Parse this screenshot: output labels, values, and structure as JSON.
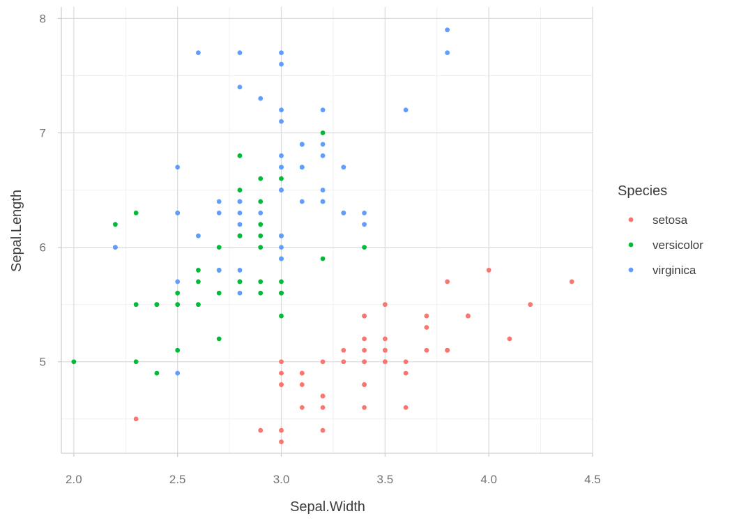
{
  "chart_data": {
    "type": "scatter",
    "xlabel": "Sepal.Width",
    "ylabel": "Sepal.Length",
    "xlim": [
      1.94,
      4.5
    ],
    "ylim": [
      4.2,
      8.1
    ],
    "x_ticks": [
      2.0,
      2.5,
      3.0,
      3.5,
      4.0,
      4.5
    ],
    "x_tick_labels": [
      "2.0",
      "2.5",
      "3.0",
      "3.5",
      "4.0",
      "4.5"
    ],
    "y_ticks": [
      5,
      6,
      7,
      8
    ],
    "y_tick_labels": [
      "5",
      "6",
      "7",
      "8"
    ],
    "grid": true,
    "legend": {
      "title": "Species",
      "position": "right"
    },
    "series": [
      {
        "name": "setosa",
        "color": "#F8766D",
        "points": [
          [
            3.5,
            5.1
          ],
          [
            3.0,
            4.9
          ],
          [
            3.2,
            4.7
          ],
          [
            3.1,
            4.6
          ],
          [
            3.6,
            5.0
          ],
          [
            3.9,
            5.4
          ],
          [
            3.4,
            4.6
          ],
          [
            3.4,
            5.0
          ],
          [
            2.9,
            4.4
          ],
          [
            3.1,
            4.9
          ],
          [
            3.7,
            5.4
          ],
          [
            3.4,
            4.8
          ],
          [
            3.0,
            4.8
          ],
          [
            3.0,
            4.3
          ],
          [
            4.0,
            5.8
          ],
          [
            4.4,
            5.7
          ],
          [
            3.9,
            5.4
          ],
          [
            3.5,
            5.1
          ],
          [
            3.8,
            5.7
          ],
          [
            3.8,
            5.1
          ],
          [
            3.4,
            5.4
          ],
          [
            3.7,
            5.1
          ],
          [
            3.6,
            4.6
          ],
          [
            3.3,
            5.1
          ],
          [
            3.4,
            4.8
          ],
          [
            3.0,
            5.0
          ],
          [
            3.4,
            5.0
          ],
          [
            3.5,
            5.2
          ],
          [
            3.4,
            5.2
          ],
          [
            3.2,
            4.7
          ],
          [
            3.1,
            4.8
          ],
          [
            3.4,
            5.4
          ],
          [
            4.1,
            5.2
          ],
          [
            4.2,
            5.5
          ],
          [
            3.1,
            4.9
          ],
          [
            3.2,
            5.0
          ],
          [
            3.5,
            5.5
          ],
          [
            3.6,
            4.9
          ],
          [
            3.0,
            4.4
          ],
          [
            3.4,
            5.1
          ],
          [
            3.5,
            5.0
          ],
          [
            2.3,
            4.5
          ],
          [
            3.2,
            4.4
          ],
          [
            3.5,
            5.0
          ],
          [
            3.8,
            5.1
          ],
          [
            3.0,
            4.8
          ],
          [
            3.8,
            5.1
          ],
          [
            3.2,
            4.6
          ],
          [
            3.7,
            5.3
          ],
          [
            3.3,
            5.0
          ]
        ]
      },
      {
        "name": "versicolor",
        "color": "#00BA38",
        "points": [
          [
            3.2,
            7.0
          ],
          [
            3.2,
            6.4
          ],
          [
            3.1,
            6.9
          ],
          [
            2.3,
            5.5
          ],
          [
            2.8,
            6.5
          ],
          [
            2.8,
            5.7
          ],
          [
            3.3,
            6.3
          ],
          [
            2.4,
            4.9
          ],
          [
            2.9,
            6.6
          ],
          [
            2.7,
            5.2
          ],
          [
            2.0,
            5.0
          ],
          [
            3.0,
            5.9
          ],
          [
            2.2,
            6.0
          ],
          [
            2.9,
            6.1
          ],
          [
            2.9,
            5.6
          ],
          [
            3.1,
            6.7
          ],
          [
            3.0,
            5.6
          ],
          [
            2.7,
            5.8
          ],
          [
            2.2,
            6.2
          ],
          [
            2.5,
            5.6
          ],
          [
            3.2,
            5.9
          ],
          [
            2.8,
            6.1
          ],
          [
            2.5,
            6.3
          ],
          [
            2.8,
            6.1
          ],
          [
            2.9,
            6.4
          ],
          [
            3.0,
            6.6
          ],
          [
            2.8,
            6.8
          ],
          [
            3.0,
            6.7
          ],
          [
            2.9,
            6.0
          ],
          [
            2.6,
            5.7
          ],
          [
            2.4,
            5.5
          ],
          [
            2.4,
            5.5
          ],
          [
            2.7,
            5.8
          ],
          [
            2.7,
            6.0
          ],
          [
            3.0,
            5.4
          ],
          [
            3.4,
            6.0
          ],
          [
            3.1,
            6.7
          ],
          [
            2.3,
            6.3
          ],
          [
            3.0,
            5.6
          ],
          [
            2.5,
            5.5
          ],
          [
            2.6,
            5.5
          ],
          [
            3.0,
            6.1
          ],
          [
            2.6,
            5.8
          ],
          [
            2.3,
            5.0
          ],
          [
            2.7,
            5.6
          ],
          [
            3.0,
            5.7
          ],
          [
            2.9,
            5.7
          ],
          [
            2.9,
            6.2
          ],
          [
            2.5,
            5.1
          ],
          [
            2.8,
            5.7
          ]
        ]
      },
      {
        "name": "virginica",
        "color": "#619CFF",
        "points": [
          [
            3.3,
            6.3
          ],
          [
            2.7,
            5.8
          ],
          [
            3.0,
            7.1
          ],
          [
            2.9,
            6.3
          ],
          [
            3.0,
            6.5
          ],
          [
            3.0,
            7.6
          ],
          [
            2.5,
            4.9
          ],
          [
            2.9,
            7.3
          ],
          [
            2.5,
            6.7
          ],
          [
            3.6,
            7.2
          ],
          [
            3.2,
            6.5
          ],
          [
            2.7,
            6.4
          ],
          [
            3.0,
            6.8
          ],
          [
            2.5,
            5.7
          ],
          [
            2.8,
            5.8
          ],
          [
            3.2,
            6.4
          ],
          [
            3.0,
            6.5
          ],
          [
            3.8,
            7.7
          ],
          [
            2.6,
            7.7
          ],
          [
            2.2,
            6.0
          ],
          [
            3.2,
            6.9
          ],
          [
            2.8,
            5.6
          ],
          [
            2.8,
            7.7
          ],
          [
            2.7,
            6.3
          ],
          [
            3.3,
            6.7
          ],
          [
            3.2,
            7.2
          ],
          [
            2.8,
            6.2
          ],
          [
            3.0,
            6.1
          ],
          [
            2.8,
            6.4
          ],
          [
            3.0,
            7.2
          ],
          [
            2.8,
            7.4
          ],
          [
            3.8,
            7.9
          ],
          [
            2.8,
            6.4
          ],
          [
            2.8,
            6.3
          ],
          [
            2.6,
            6.1
          ],
          [
            3.0,
            7.7
          ],
          [
            3.4,
            6.3
          ],
          [
            3.1,
            6.4
          ],
          [
            3.0,
            6.0
          ],
          [
            3.1,
            6.9
          ],
          [
            3.1,
            6.7
          ],
          [
            3.1,
            6.9
          ],
          [
            2.7,
            5.8
          ],
          [
            3.2,
            6.8
          ],
          [
            3.3,
            6.7
          ],
          [
            3.0,
            6.7
          ],
          [
            2.5,
            6.3
          ],
          [
            3.0,
            6.5
          ],
          [
            3.4,
            6.2
          ],
          [
            3.0,
            5.9
          ]
        ]
      }
    ]
  }
}
